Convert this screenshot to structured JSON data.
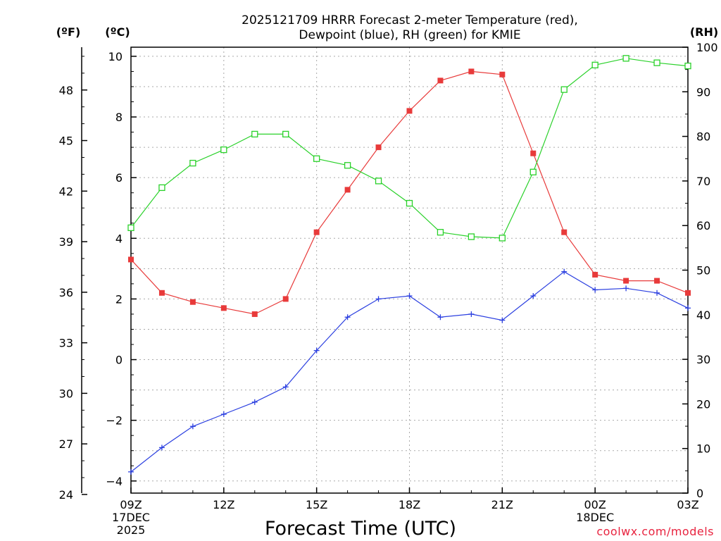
{
  "chart_data": {
    "type": "line",
    "title_line1": "2025121709 HRRR Forecast 2-meter Temperature (red),",
    "title_line2": "Dewpoint (blue), RH (green) for KMIE",
    "xlabel": "Forecast Time (UTC)",
    "credit": "coolwx.com/models",
    "units": {
      "fahrenheit": "(ºF)",
      "celsius": "(ºC)",
      "rh": "(RH)"
    },
    "x_hours": [
      0,
      1,
      2,
      3,
      4,
      5,
      6,
      7,
      8,
      9,
      10,
      11,
      12,
      13,
      14,
      15,
      16,
      17,
      18
    ],
    "x_ticks": [
      {
        "hour": 0,
        "lines": [
          "09Z",
          "17DEC",
          "2025"
        ]
      },
      {
        "hour": 3,
        "lines": [
          "12Z"
        ]
      },
      {
        "hour": 6,
        "lines": [
          "15Z"
        ]
      },
      {
        "hour": 9,
        "lines": [
          "18Z"
        ]
      },
      {
        "hour": 12,
        "lines": [
          "21Z"
        ]
      },
      {
        "hour": 15,
        "lines": [
          "00Z",
          "18DEC"
        ]
      },
      {
        "hour": 18,
        "lines": [
          "03Z"
        ]
      }
    ],
    "ylim_c": [
      -4.4,
      10.3
    ],
    "yticks_c": [
      "−4",
      "−2",
      "0",
      "2",
      "4",
      "6",
      "8",
      "10"
    ],
    "yticks_c_values": [
      -4,
      -2,
      0,
      2,
      4,
      6,
      8,
      10
    ],
    "yticks_f": [
      "24",
      "27",
      "30",
      "33",
      "36",
      "39",
      "42",
      "45",
      "48"
    ],
    "yticks_f_values": [
      24,
      27,
      30,
      33,
      36,
      39,
      42,
      45,
      48
    ],
    "ylim_rh": [
      0,
      100
    ],
    "yticks_rh": [
      "0",
      "10",
      "20",
      "30",
      "40",
      "50",
      "60",
      "70",
      "80",
      "90",
      "100"
    ],
    "yticks_rh_values": [
      0,
      10,
      20,
      30,
      40,
      50,
      60,
      70,
      80,
      90,
      100
    ],
    "grid": true,
    "series": [
      {
        "name": "2-meter Temperature",
        "axis": "celsius",
        "color": "#e83a3a",
        "marker": "filled-square",
        "values": [
          3.3,
          2.2,
          1.9,
          1.7,
          1.5,
          2.0,
          4.2,
          5.6,
          7.0,
          8.2,
          9.2,
          9.5,
          9.4,
          6.8,
          4.2,
          2.8,
          2.6,
          2.6,
          2.2
        ]
      },
      {
        "name": "Dewpoint",
        "axis": "celsius",
        "color": "#2b3fe0",
        "marker": "plus",
        "values": [
          -3.7,
          -2.9,
          -2.2,
          -1.8,
          -1.4,
          -0.9,
          0.3,
          1.4,
          2.0,
          2.1,
          1.4,
          1.5,
          1.3,
          2.1,
          2.9,
          2.3,
          2.35,
          2.2,
          1.7
        ]
      },
      {
        "name": "RH",
        "axis": "rh",
        "color": "#2ad12a",
        "marker": "open-square",
        "values": [
          59.5,
          68.5,
          74,
          77,
          80.5,
          80.5,
          75,
          73.5,
          70,
          65,
          58.5,
          57.5,
          57.2,
          72,
          90.5,
          96,
          97.5,
          96.5,
          95.8
        ]
      }
    ]
  }
}
